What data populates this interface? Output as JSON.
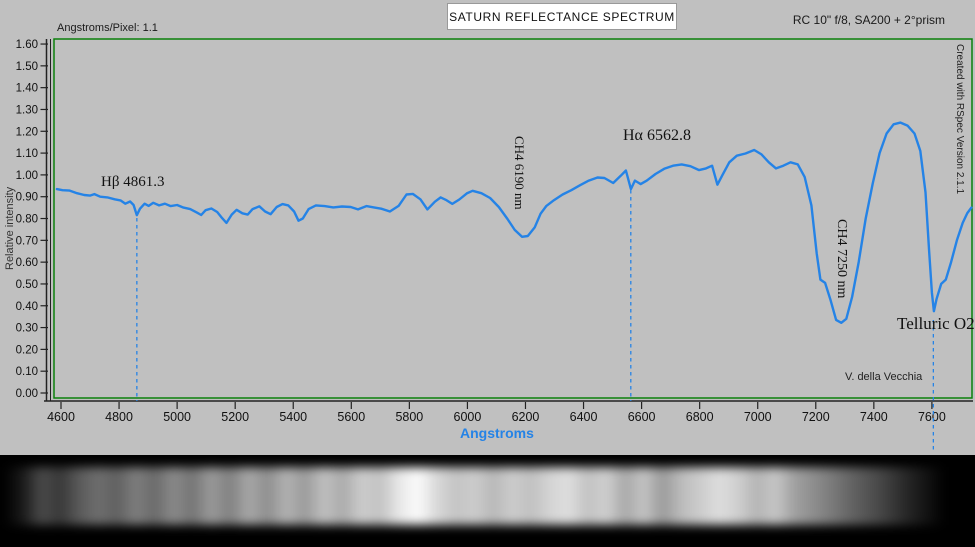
{
  "header": {
    "angstroms_per_pixel": "Angstroms/Pixel: 1.1",
    "title": "SATURN REFLECTANCE SPECTRUM",
    "instrument": "RC 10\" f/8, SA200 + 2°prism"
  },
  "credit_vertical": "Created with RSpec Version 2.1.1",
  "author": "V. della Vecchia",
  "chart_data": {
    "type": "line",
    "title": "SATURN REFLECTANCE SPECTRUM",
    "xlabel": "Angstroms",
    "ylabel": "Relative intensity",
    "xlim": [
      4586,
      7738
    ],
    "ylim": [
      0,
      1.6
    ],
    "x_ticks": [
      4600,
      4800,
      5000,
      5200,
      5400,
      5600,
      5800,
      6000,
      6200,
      6400,
      6600,
      6800,
      7000,
      7200,
      7400,
      7600
    ],
    "y_ticks": [
      1.6,
      1.5,
      1.4,
      1.3,
      1.2,
      1.1,
      1.0,
      0.9,
      0.8,
      0.7,
      0.6,
      0.5,
      0.4,
      0.3,
      0.2,
      0.1,
      0.0
    ],
    "grid": false,
    "legend": "none",
    "line_color": "#2583e6",
    "axis_color": "#222222",
    "border_color": "#0b800b",
    "annotations": [
      {
        "label": "Hβ 4861.3",
        "wavelength": 4861.3,
        "orientation": "horizontal",
        "dashed_line": true
      },
      {
        "label": "CH4 6190 nm",
        "wavelength": 6190,
        "orientation": "vertical",
        "dashed_line": false
      },
      {
        "label": "Hα 6562.8",
        "wavelength": 6562.8,
        "orientation": "horizontal",
        "dashed_line": true
      },
      {
        "label": "CH4 7250 nm",
        "wavelength": 7250,
        "orientation": "vertical",
        "dashed_line": false
      },
      {
        "label": "Telluric O2",
        "wavelength": 7605,
        "orientation": "horizontal",
        "dashed_line": true
      }
    ],
    "series": [
      {
        "name": "Saturn reflectance",
        "x": [
          4586,
          4605,
          4630,
          4655,
          4680,
          4700,
          4715,
          4735,
          4760,
          4785,
          4805,
          4822,
          4838,
          4850,
          4861,
          4872,
          4888,
          4902,
          4918,
          4938,
          4958,
          4978,
          5000,
          5022,
          5045,
          5068,
          5083,
          5098,
          5118,
          5138,
          5155,
          5170,
          5188,
          5205,
          5225,
          5243,
          5260,
          5283,
          5303,
          5322,
          5343,
          5363,
          5383,
          5403,
          5418,
          5433,
          5453,
          5478,
          5508,
          5538,
          5568,
          5598,
          5623,
          5652,
          5678,
          5703,
          5733,
          5763,
          5790,
          5812,
          5838,
          5862,
          5888,
          5908,
          5928,
          5948,
          5972,
          5998,
          6018,
          6048,
          6078,
          6108,
          6138,
          6163,
          6188,
          6208,
          6232,
          6252,
          6272,
          6298,
          6328,
          6358,
          6388,
          6418,
          6448,
          6472,
          6502,
          6528,
          6546,
          6563,
          6577,
          6597,
          6618,
          6648,
          6678,
          6708,
          6738,
          6768,
          6798,
          6822,
          6843,
          6861,
          6878,
          6902,
          6928,
          6958,
          6988,
          7013,
          7038,
          7063,
          7088,
          7113,
          7138,
          7162,
          7185,
          7203,
          7216,
          7232,
          7250,
          7270,
          7288,
          7305,
          7325,
          7348,
          7372,
          7396,
          7420,
          7444,
          7468,
          7492,
          7516,
          7540,
          7560,
          7578,
          7590,
          7600,
          7607,
          7616,
          7632,
          7648,
          7666,
          7686,
          7706,
          7722,
          7736
        ],
        "y": [
          0.935,
          0.93,
          0.928,
          0.916,
          0.908,
          0.905,
          0.912,
          0.9,
          0.897,
          0.888,
          0.883,
          0.868,
          0.878,
          0.862,
          0.815,
          0.845,
          0.868,
          0.858,
          0.872,
          0.86,
          0.868,
          0.857,
          0.862,
          0.85,
          0.843,
          0.827,
          0.816,
          0.838,
          0.846,
          0.83,
          0.802,
          0.78,
          0.818,
          0.84,
          0.824,
          0.818,
          0.843,
          0.856,
          0.832,
          0.82,
          0.853,
          0.866,
          0.86,
          0.832,
          0.79,
          0.8,
          0.843,
          0.86,
          0.857,
          0.851,
          0.855,
          0.853,
          0.842,
          0.857,
          0.851,
          0.845,
          0.832,
          0.858,
          0.91,
          0.913,
          0.888,
          0.842,
          0.877,
          0.897,
          0.884,
          0.867,
          0.887,
          0.915,
          0.927,
          0.916,
          0.894,
          0.853,
          0.798,
          0.748,
          0.716,
          0.72,
          0.76,
          0.822,
          0.858,
          0.884,
          0.91,
          0.93,
          0.953,
          0.974,
          0.988,
          0.986,
          0.963,
          0.996,
          1.02,
          0.935,
          0.974,
          0.958,
          0.974,
          1.004,
          1.028,
          1.042,
          1.048,
          1.04,
          1.022,
          1.03,
          1.042,
          0.955,
          0.998,
          1.058,
          1.088,
          1.098,
          1.114,
          1.094,
          1.058,
          1.03,
          1.042,
          1.058,
          1.048,
          0.99,
          0.86,
          0.64,
          0.52,
          0.505,
          0.43,
          0.335,
          0.322,
          0.34,
          0.44,
          0.6,
          0.8,
          0.96,
          1.1,
          1.19,
          1.232,
          1.24,
          1.226,
          1.19,
          1.11,
          0.92,
          0.66,
          0.46,
          0.375,
          0.43,
          0.5,
          0.52,
          0.6,
          0.7,
          0.78,
          0.825,
          0.85
        ]
      }
    ]
  }
}
